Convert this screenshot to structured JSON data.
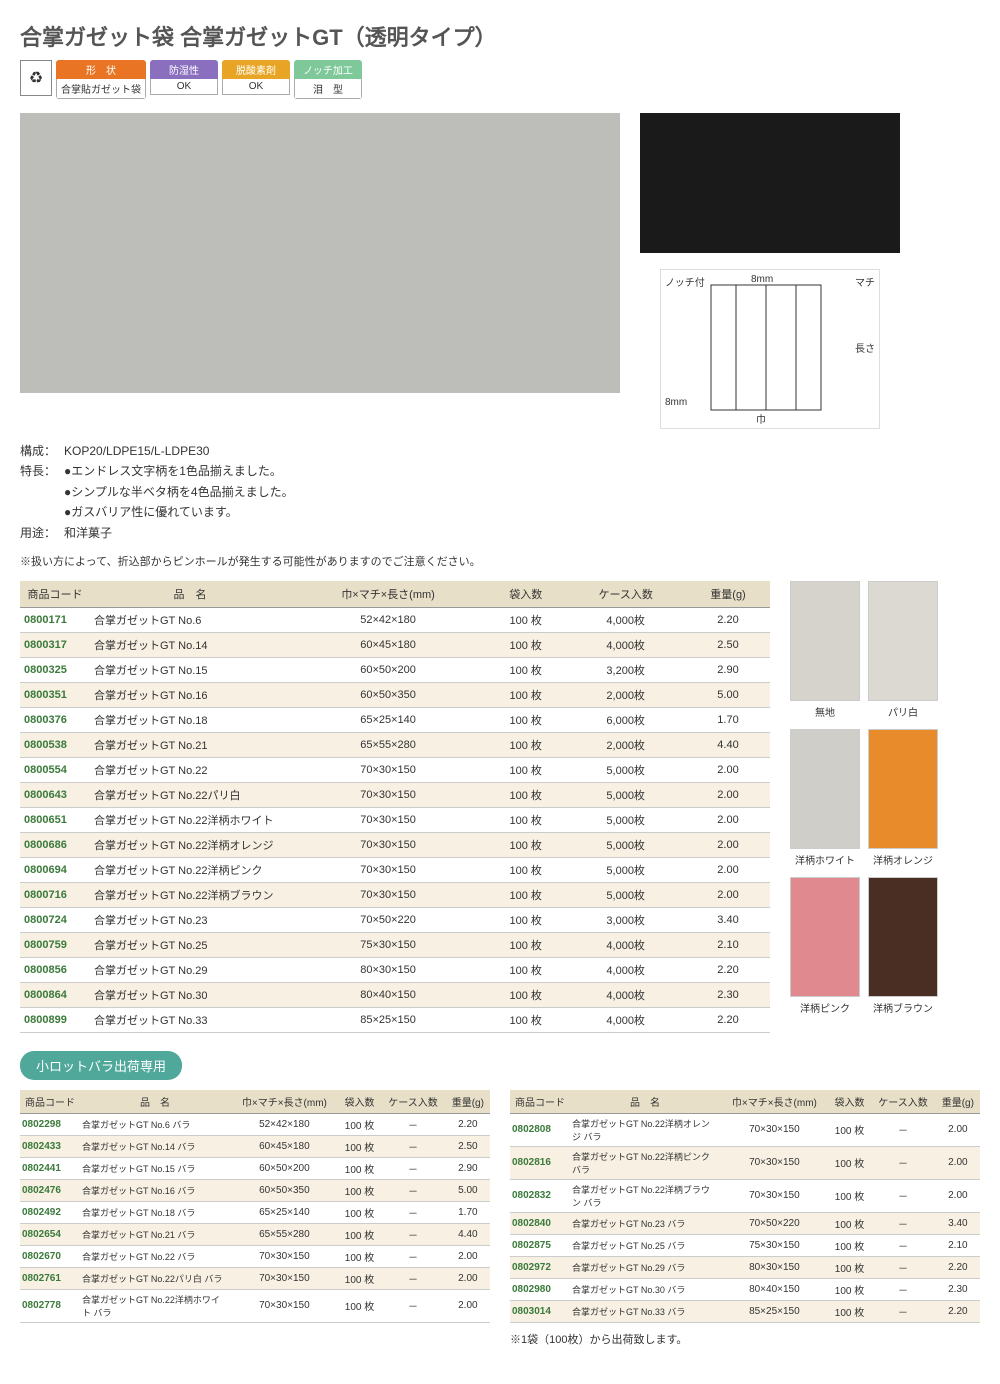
{
  "title": "合掌ガゼット袋 合掌ガゼットGT（透明タイプ）",
  "badges": [
    {
      "top": "形　状",
      "bot": "合掌貼ガゼット袋",
      "color": "#e87424"
    },
    {
      "top": "防湿性",
      "bot": "OK",
      "color": "#8a6fbf"
    },
    {
      "top": "脱酸素剤",
      "bot": "OK",
      "color": "#e8a424"
    },
    {
      "top": "ノッチ加工",
      "bot": "泪　型",
      "color": "#7fc89a"
    }
  ],
  "diagram": {
    "notch": "ノッチ付",
    "top": "8mm",
    "right_top": "マチ",
    "right": "長さ",
    "left": "8mm",
    "bottom": "巾"
  },
  "description": {
    "composition_label": "構成：",
    "composition": "KOP20/LDPE15/L-LDPE30",
    "feature_label": "特長：",
    "features": [
      "●エンドレス文字柄を1色品揃えました。",
      "●シンプルな半ベタ柄を4色品揃えました。",
      "●ガスバリア性に優れています。"
    ],
    "use_label": "用途：",
    "use": "和洋菓子",
    "note": "※扱い方によって、折込部からピンホールが発生する可能性がありますのでご注意ください。"
  },
  "table1": {
    "headers": [
      "商品コード",
      "品　名",
      "巾×マチ×長さ(mm)",
      "袋入数",
      "ケース入数",
      "重量(g)"
    ],
    "rows": [
      [
        "0800171",
        "合掌ガゼットGT No.6",
        "52×42×180",
        "100 枚",
        "4,000枚",
        "2.20"
      ],
      [
        "0800317",
        "合掌ガゼットGT No.14",
        "60×45×180",
        "100 枚",
        "4,000枚",
        "2.50"
      ],
      [
        "0800325",
        "合掌ガゼットGT No.15",
        "60×50×200",
        "100 枚",
        "3,200枚",
        "2.90"
      ],
      [
        "0800351",
        "合掌ガゼットGT No.16",
        "60×50×350",
        "100 枚",
        "2,000枚",
        "5.00"
      ],
      [
        "0800376",
        "合掌ガゼットGT No.18",
        "65×25×140",
        "100 枚",
        "6,000枚",
        "1.70"
      ],
      [
        "0800538",
        "合掌ガゼットGT No.21",
        "65×55×280",
        "100 枚",
        "2,000枚",
        "4.40"
      ],
      [
        "0800554",
        "合掌ガゼットGT No.22",
        "70×30×150",
        "100 枚",
        "5,000枚",
        "2.00"
      ],
      [
        "0800643",
        "合掌ガゼットGT No.22パリ白",
        "70×30×150",
        "100 枚",
        "5,000枚",
        "2.00"
      ],
      [
        "0800651",
        "合掌ガゼットGT No.22洋柄ホワイト",
        "70×30×150",
        "100 枚",
        "5,000枚",
        "2.00"
      ],
      [
        "0800686",
        "合掌ガゼットGT No.22洋柄オレンジ",
        "70×30×150",
        "100 枚",
        "5,000枚",
        "2.00"
      ],
      [
        "0800694",
        "合掌ガゼットGT No.22洋柄ピンク",
        "70×30×150",
        "100 枚",
        "5,000枚",
        "2.00"
      ],
      [
        "0800716",
        "合掌ガゼットGT No.22洋柄ブラウン",
        "70×30×150",
        "100 枚",
        "5,000枚",
        "2.00"
      ],
      [
        "0800724",
        "合掌ガゼットGT No.23",
        "70×50×220",
        "100 枚",
        "3,000枚",
        "3.40"
      ],
      [
        "0800759",
        "合掌ガゼットGT No.25",
        "75×30×150",
        "100 枚",
        "4,000枚",
        "2.10"
      ],
      [
        "0800856",
        "合掌ガゼットGT No.29",
        "80×30×150",
        "100 枚",
        "4,000枚",
        "2.20"
      ],
      [
        "0800864",
        "合掌ガゼットGT No.30",
        "80×40×150",
        "100 枚",
        "4,000枚",
        "2.30"
      ],
      [
        "0800899",
        "合掌ガゼットGT No.33",
        "85×25×150",
        "100 枚",
        "4,000枚",
        "2.20"
      ]
    ]
  },
  "swatches": [
    [
      {
        "label": "無地",
        "color": "#d6d3cc"
      },
      {
        "label": "パリ白",
        "color": "#dcd9d2"
      }
    ],
    [
      {
        "label": "洋柄ホワイト",
        "color": "#d0cec8"
      },
      {
        "label": "洋柄オレンジ",
        "color": "#e88b2a"
      }
    ],
    [
      {
        "label": "洋柄ピンク",
        "color": "#e08a8f"
      },
      {
        "label": "洋柄ブラウン",
        "color": "#4a2e24"
      }
    ]
  ],
  "section2_title": "小ロットバラ出荷専用",
  "table2l": {
    "headers": [
      "商品コード",
      "品　名",
      "巾×マチ×長さ(mm)",
      "袋入数",
      "ケース入数",
      "重量(g)"
    ],
    "rows": [
      [
        "0802298",
        "合掌ガゼットGT No.6 バラ",
        "52×42×180",
        "100 枚",
        "－",
        "2.20"
      ],
      [
        "0802433",
        "合掌ガゼットGT No.14 バラ",
        "60×45×180",
        "100 枚",
        "－",
        "2.50"
      ],
      [
        "0802441",
        "合掌ガゼットGT No.15 バラ",
        "60×50×200",
        "100 枚",
        "－",
        "2.90"
      ],
      [
        "0802476",
        "合掌ガゼットGT No.16 バラ",
        "60×50×350",
        "100 枚",
        "－",
        "5.00"
      ],
      [
        "0802492",
        "合掌ガゼットGT No.18 バラ",
        "65×25×140",
        "100 枚",
        "－",
        "1.70"
      ],
      [
        "0802654",
        "合掌ガゼットGT No.21 バラ",
        "65×55×280",
        "100 枚",
        "－",
        "4.40"
      ],
      [
        "0802670",
        "合掌ガゼットGT No.22 バラ",
        "70×30×150",
        "100 枚",
        "－",
        "2.00"
      ],
      [
        "0802761",
        "合掌ガゼットGT No.22パリ白 バラ",
        "70×30×150",
        "100 枚",
        "－",
        "2.00"
      ],
      [
        "0802778",
        "合掌ガゼットGT No.22洋柄ホワイト バラ",
        "70×30×150",
        "100 枚",
        "－",
        "2.00"
      ]
    ]
  },
  "table2r": {
    "headers": [
      "商品コード",
      "品　名",
      "巾×マチ×長さ(mm)",
      "袋入数",
      "ケース入数",
      "重量(g)"
    ],
    "rows": [
      [
        "0802808",
        "合掌ガゼットGT No.22洋柄オレンジ バラ",
        "70×30×150",
        "100 枚",
        "－",
        "2.00"
      ],
      [
        "0802816",
        "合掌ガゼットGT No.22洋柄ピンク バラ",
        "70×30×150",
        "100 枚",
        "－",
        "2.00"
      ],
      [
        "0802832",
        "合掌ガゼットGT No.22洋柄ブラウン バラ",
        "70×30×150",
        "100 枚",
        "－",
        "2.00"
      ],
      [
        "0802840",
        "合掌ガゼットGT No.23 バラ",
        "70×50×220",
        "100 枚",
        "－",
        "3.40"
      ],
      [
        "0802875",
        "合掌ガゼットGT No.25 バラ",
        "75×30×150",
        "100 枚",
        "－",
        "2.10"
      ],
      [
        "0802972",
        "合掌ガゼットGT No.29 バラ",
        "80×30×150",
        "100 枚",
        "－",
        "2.20"
      ],
      [
        "0802980",
        "合掌ガゼットGT No.30 バラ",
        "80×40×150",
        "100 枚",
        "－",
        "2.30"
      ],
      [
        "0803014",
        "合掌ガゼットGT No.33 バラ",
        "85×25×150",
        "100 枚",
        "－",
        "2.20"
      ]
    ],
    "note": "※1袋（100枚）から出荷致します。"
  }
}
